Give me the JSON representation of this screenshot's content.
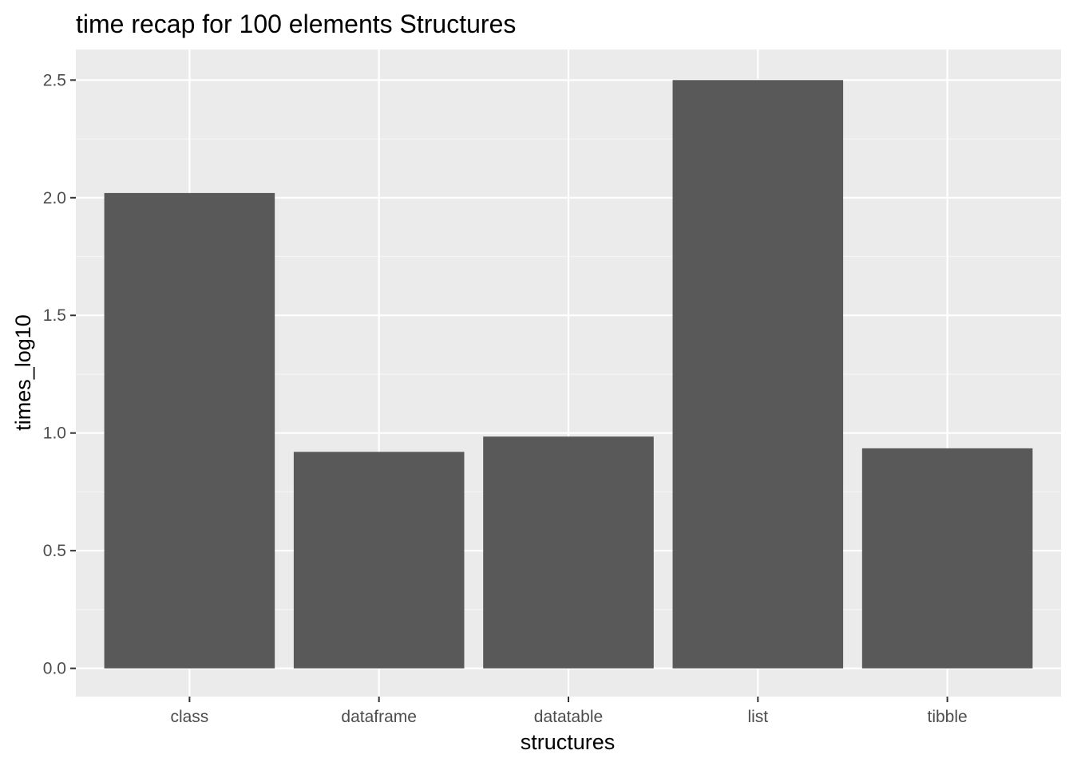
{
  "chart_data": {
    "type": "bar",
    "title": "time recap for  100  elements Structures",
    "xlabel": "structures",
    "ylabel": "times_log10",
    "categories": [
      "class",
      "dataframe",
      "datatable",
      "list",
      "tibble"
    ],
    "values": [
      2.02,
      0.92,
      0.985,
      2.5,
      0.935
    ],
    "ylim": [
      -0.12,
      2.63
    ],
    "yticks": [
      0.0,
      0.5,
      1.0,
      1.5,
      2.0,
      2.5
    ],
    "ytick_labels": [
      "0.0",
      "0.5",
      "1.0",
      "1.5",
      "2.0",
      "2.5"
    ],
    "grid": true,
    "legend": "none",
    "colors": {
      "panel_background": "#ebebeb",
      "grid_major": "#ffffff",
      "grid_minor": "#f5f5f5",
      "bar_fill": "#595959",
      "tick_text": "#4d4d4d",
      "tick_mark": "#333333"
    }
  }
}
